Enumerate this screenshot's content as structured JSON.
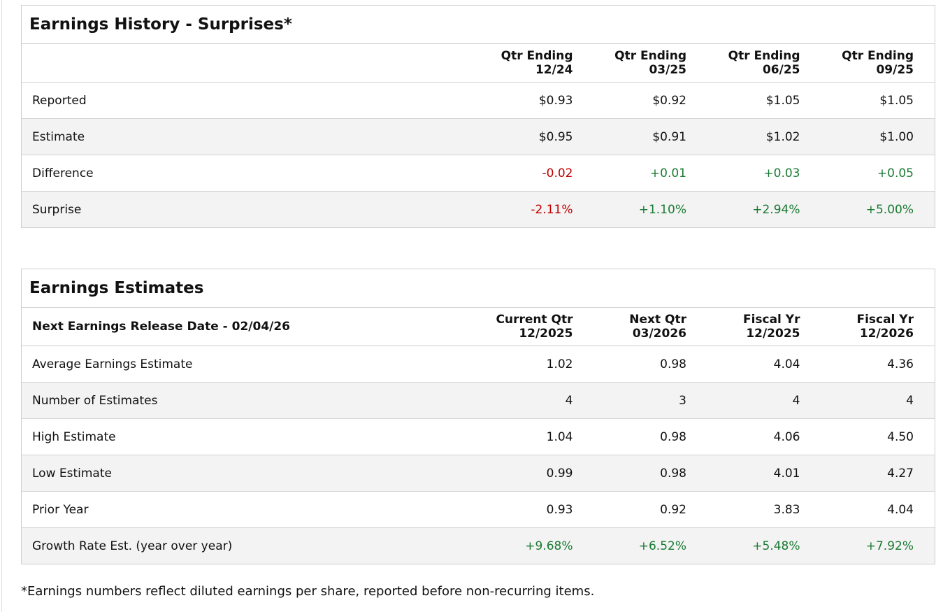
{
  "colors": {
    "negative": "#c00000",
    "positive": "#1a7a33",
    "row_shade": "#f3f3f3",
    "border": "#cfcfcf"
  },
  "surprises": {
    "title": "Earnings History - Surprises*",
    "columns": [
      {
        "line1": "Qtr Ending",
        "line2": "12/24"
      },
      {
        "line1": "Qtr Ending",
        "line2": "03/25"
      },
      {
        "line1": "Qtr Ending",
        "line2": "06/25"
      },
      {
        "line1": "Qtr Ending",
        "line2": "09/25"
      }
    ],
    "rows": [
      {
        "label": "Reported",
        "values": [
          "$0.93",
          "$0.92",
          "$1.05",
          "$1.05"
        ]
      },
      {
        "label": "Estimate",
        "values": [
          "$0.95",
          "$0.91",
          "$1.02",
          "$1.00"
        ]
      },
      {
        "label": "Difference",
        "values": [
          "-0.02",
          "+0.01",
          "+0.03",
          "+0.05"
        ]
      },
      {
        "label": "Surprise",
        "values": [
          "-2.11%",
          "+1.10%",
          "+2.94%",
          "+5.00%"
        ]
      }
    ]
  },
  "estimates": {
    "title": "Earnings Estimates",
    "release_label": "Next Earnings Release Date - 02/04/26",
    "columns": [
      {
        "line1": "Current Qtr",
        "line2": "12/2025"
      },
      {
        "line1": "Next Qtr",
        "line2": "03/2026"
      },
      {
        "line1": "Fiscal Yr",
        "line2": "12/2025"
      },
      {
        "line1": "Fiscal Yr",
        "line2": "12/2026"
      }
    ],
    "rows": [
      {
        "label": "Average Earnings Estimate",
        "values": [
          "1.02",
          "0.98",
          "4.04",
          "4.36"
        ]
      },
      {
        "label": "Number of Estimates",
        "values": [
          "4",
          "3",
          "4",
          "4"
        ]
      },
      {
        "label": "High Estimate",
        "values": [
          "1.04",
          "0.98",
          "4.06",
          "4.50"
        ]
      },
      {
        "label": "Low Estimate",
        "values": [
          "0.99",
          "0.98",
          "4.01",
          "4.27"
        ]
      },
      {
        "label": "Prior Year",
        "values": [
          "0.93",
          "0.92",
          "3.83",
          "4.04"
        ]
      },
      {
        "label": "Growth Rate Est. (year over year)",
        "values": [
          "+9.68%",
          "+6.52%",
          "+5.48%",
          "+7.92%"
        ]
      }
    ]
  },
  "footnote": "*Earnings numbers reflect diluted earnings per share, reported before non-recurring items."
}
